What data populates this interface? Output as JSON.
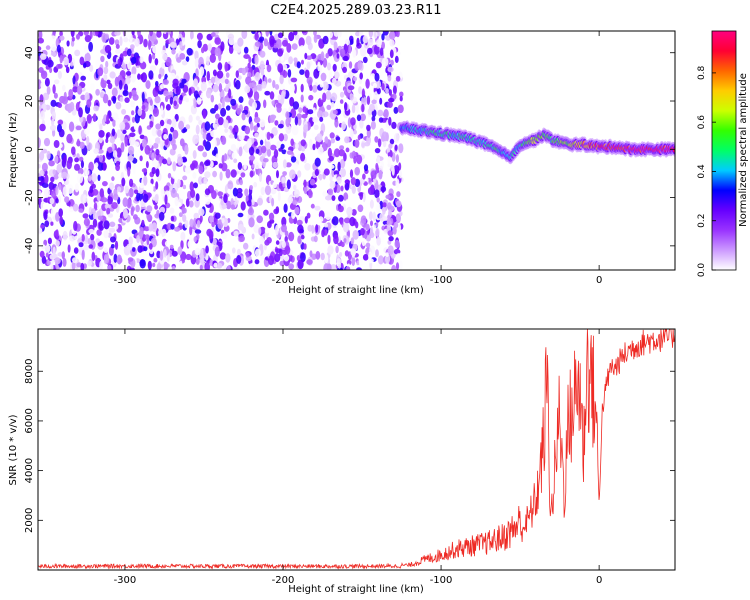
{
  "figure_title": "C2E4.2025.289.03.23.R11",
  "chart_data": [
    {
      "type": "heatmap",
      "title": "C2E4.2025.289.03.23.R11",
      "xlabel": "Height of straight line (km)",
      "ylabel": "Frequency (Hz)",
      "xlim": [
        -355,
        48
      ],
      "ylim": [
        -50,
        49
      ],
      "xticks": [
        -300,
        -200,
        -100,
        0
      ],
      "yticks": [
        -40,
        -20,
        0,
        20,
        40
      ],
      "colorbar": {
        "label": "Normalized spectral amplitude",
        "range": [
          0,
          0.97
        ],
        "ticks": [
          0.0,
          0.2,
          0.4,
          0.6,
          0.8
        ],
        "tick_labels": [
          "0.0",
          "0.2",
          "0.4",
          "0.6",
          "0.8"
        ],
        "colormap": [
          "#ffffff",
          "#cc99ff",
          "#9933ff",
          "#6600ff",
          "#0000ff",
          "#00ccff",
          "#00ff66",
          "#33ff00",
          "#ccff00",
          "#ffcc00",
          "#ff6600",
          "#ff0033",
          "#ff0080"
        ]
      },
      "noise_region": {
        "x_range": [
          -355,
          -125
        ],
        "typical_amplitude": [
          0.0,
          0.3
        ]
      },
      "signal_track": {
        "description": "narrow frequency ridge",
        "x": [
          -125,
          -115,
          -105,
          -95,
          -85,
          -75,
          -65,
          -60,
          -55,
          -50,
          -45,
          -40,
          -35,
          -30,
          -25,
          -20,
          -10,
          0,
          10,
          20,
          30,
          48
        ],
        "freq": [
          9,
          8,
          7,
          6,
          5,
          3,
          0,
          -2,
          -3,
          2,
          3,
          4,
          6,
          4,
          3,
          2,
          2,
          1,
          1,
          0,
          0,
          0
        ],
        "amplitude": [
          0.35,
          0.45,
          0.45,
          0.45,
          0.45,
          0.45,
          0.5,
          0.4,
          0.45,
          0.45,
          0.55,
          0.6,
          0.55,
          0.5,
          0.55,
          0.6,
          0.75,
          0.85,
          0.9,
          0.95,
          0.97,
          0.97
        ]
      }
    },
    {
      "type": "line",
      "xlabel": "Height of straight line (km)",
      "ylabel": "SNR (10 * v/v)",
      "xlim": [
        -355,
        48
      ],
      "ylim": [
        0,
        9700
      ],
      "xticks": [
        -300,
        -200,
        -100,
        0
      ],
      "yticks": [
        2000,
        4000,
        6000,
        8000
      ],
      "series": [
        {
          "name": "SNR",
          "color": "#ee2a24",
          "x": [
            -355,
            -300,
            -250,
            -200,
            -150,
            -120,
            -110,
            -100,
            -90,
            -80,
            -70,
            -60,
            -55,
            -50,
            -45,
            -40,
            -38,
            -35,
            -33,
            -31,
            -30,
            -28,
            -25,
            -22,
            -20,
            -18,
            -15,
            -12,
            -10,
            -8,
            -5,
            -2,
            0,
            2,
            5,
            8,
            10,
            15,
            20,
            25,
            30,
            35,
            40,
            45,
            48
          ],
          "y": [
            150,
            160,
            155,
            150,
            150,
            160,
            350,
            500,
            700,
            800,
            900,
            1100,
            1300,
            1600,
            2000,
            2800,
            3600,
            5200,
            7900,
            3000,
            2300,
            4000,
            6300,
            2900,
            5600,
            6200,
            7000,
            7600,
            4500,
            8300,
            7700,
            6400,
            2600,
            6500,
            7700,
            8300,
            8200,
            8700,
            9000,
            9200,
            9300,
            9400,
            9450,
            9500,
            9650
          ]
        }
      ]
    }
  ]
}
